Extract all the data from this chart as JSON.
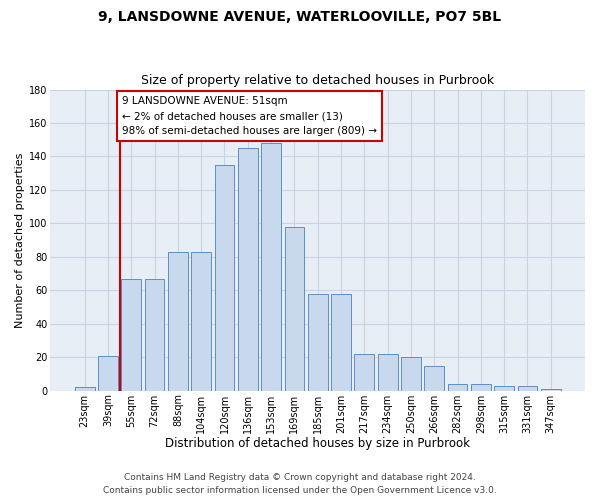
{
  "title1": "9, LANSDOWNE AVENUE, WATERLOOVILLE, PO7 5BL",
  "title2": "Size of property relative to detached houses in Purbrook",
  "xlabel": "Distribution of detached houses by size in Purbrook",
  "ylabel": "Number of detached properties",
  "categories": [
    "23sqm",
    "39sqm",
    "55sqm",
    "72sqm",
    "88sqm",
    "104sqm",
    "120sqm",
    "136sqm",
    "153sqm",
    "169sqm",
    "185sqm",
    "201sqm",
    "217sqm",
    "234sqm",
    "250sqm",
    "266sqm",
    "282sqm",
    "298sqm",
    "315sqm",
    "331sqm",
    "347sqm"
  ],
  "bar_heights": [
    2,
    21,
    67,
    67,
    83,
    83,
    135,
    145,
    148,
    98,
    58,
    58,
    22,
    22,
    20,
    15,
    4,
    4,
    3,
    3,
    1
  ],
  "bar_color": "#c9d9ed",
  "bar_edge_color": "#5b8fc9",
  "grid_color": "#c8d4e3",
  "bg_color": "#e8eef5",
  "vline_color": "#cc0000",
  "vline_x": 1.5,
  "annotation_text": "9 LANSDOWNE AVENUE: 51sqm\n← 2% of detached houses are smaller (13)\n98% of semi-detached houses are larger (809) →",
  "annotation_box_color": "#ffffff",
  "annotation_box_edge": "#cc0000",
  "footer1": "Contains HM Land Registry data © Crown copyright and database right 2024.",
  "footer2": "Contains public sector information licensed under the Open Government Licence v3.0.",
  "ylim": [
    0,
    180
  ],
  "yticks": [
    0,
    20,
    40,
    60,
    80,
    100,
    120,
    140,
    160,
    180
  ],
  "title1_fontsize": 10,
  "title2_fontsize": 9,
  "xlabel_fontsize": 8.5,
  "ylabel_fontsize": 8,
  "tick_fontsize": 7,
  "footer_fontsize": 6.5,
  "annot_fontsize": 7.5
}
